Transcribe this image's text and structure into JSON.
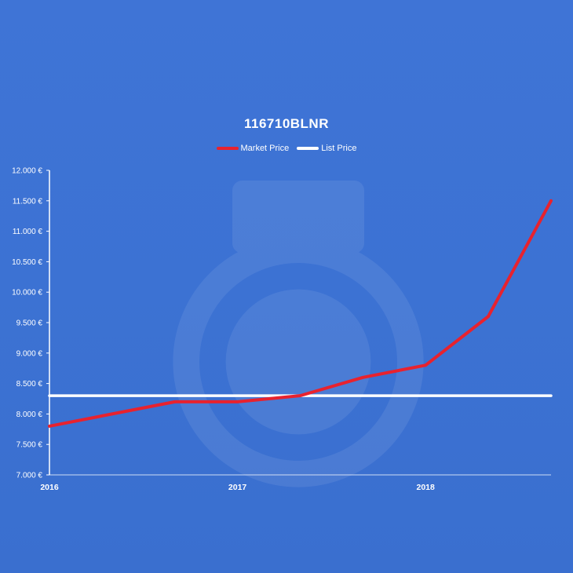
{
  "chart_data": {
    "type": "line",
    "title": "116710BLNR",
    "x": [
      2016.0,
      2016.333,
      2016.667,
      2017.0,
      2017.333,
      2017.667,
      2018.0,
      2018.333,
      2018.667
    ],
    "x_tick_labels": [
      "2016",
      "2017",
      "2018"
    ],
    "x_ticks": [
      2016,
      2017,
      2018
    ],
    "y_tick_labels": [
      "7.000 €",
      "7.500 €",
      "8.000 €",
      "8.500 €",
      "9.000 €",
      "9.500 €",
      "10.000 €",
      "10.500 €",
      "11.000 €",
      "11.500 €",
      "12.000 €"
    ],
    "y_ticks": [
      7000,
      7500,
      8000,
      8500,
      9000,
      9500,
      10000,
      10500,
      11000,
      11500,
      12000
    ],
    "ylim": [
      7000,
      12000
    ],
    "xlim": [
      2016.0,
      2018.667
    ],
    "series": [
      {
        "name": "Market Price",
        "color": "#e8222e",
        "values": [
          7800,
          8000,
          8200,
          8200,
          8300,
          8600,
          8800,
          9600,
          11500
        ]
      },
      {
        "name": "List Price",
        "color": "#ffffff",
        "values": [
          8300,
          8300,
          8300,
          8300,
          8300,
          8300,
          8300,
          8300,
          8300
        ]
      }
    ],
    "legend_position": "top-center",
    "grid": false,
    "drop_lines": true,
    "xlabel": "",
    "ylabel": ""
  }
}
